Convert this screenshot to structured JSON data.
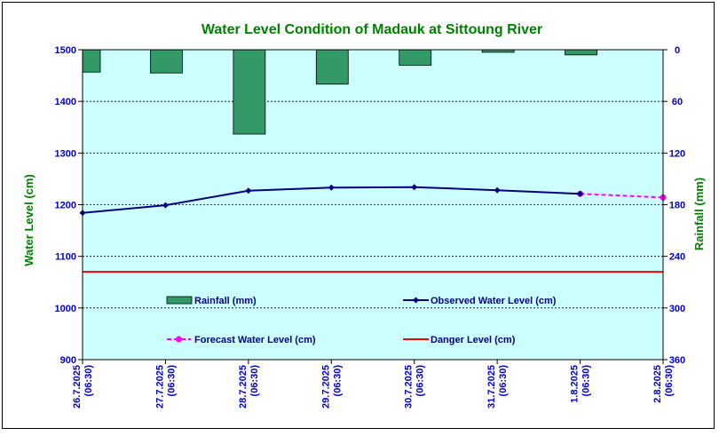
{
  "chart_data": {
    "type": "bar+line",
    "title": "Water Level Condition of Madauk at Sittoung River",
    "categories": [
      [
        "26.7.2025",
        "(06:30)"
      ],
      [
        "27.7.2025",
        "(06:30)"
      ],
      [
        "28.7.2025",
        "(06:30)"
      ],
      [
        "29.7.2025",
        "(06:30)"
      ],
      [
        "30.7.2025",
        "(06:30)"
      ],
      [
        "31.7.2025",
        "(06:30)"
      ],
      [
        "1.8.2025",
        "(06:30)"
      ],
      [
        "2.8.2025",
        "(06:30)"
      ]
    ],
    "ylabel_left": "Water Level (cm)",
    "ylabel_right": "Rainfall (mm)",
    "ylim_left": [
      900,
      1500
    ],
    "yticks_left": [
      900,
      1000,
      1100,
      1200,
      1300,
      1400,
      1500
    ],
    "ylim_right": [
      0,
      360
    ],
    "yticks_right": [
      0,
      60,
      120,
      180,
      240,
      300,
      360
    ],
    "right_axis_inverted": true,
    "rainfall": {
      "name": "Rainfall (mm)",
      "values": [
        26,
        27,
        98,
        40,
        18,
        3,
        6
      ],
      "color": "#339966"
    },
    "observed": {
      "name": "Observed Water Level (cm)",
      "values": [
        1184,
        1199,
        1227,
        1233,
        1234,
        1228,
        1221
      ],
      "color": "#000080"
    },
    "forecast": {
      "name": "Forecast Water Level (cm)",
      "values": [
        null,
        null,
        null,
        null,
        null,
        null,
        1221,
        1214
      ],
      "color": "#ff00ff"
    },
    "danger": {
      "name": "Danger Level (cm)",
      "value": 1070,
      "color": "#ff0000"
    },
    "grid": true,
    "plot_background": "#ccffff"
  }
}
